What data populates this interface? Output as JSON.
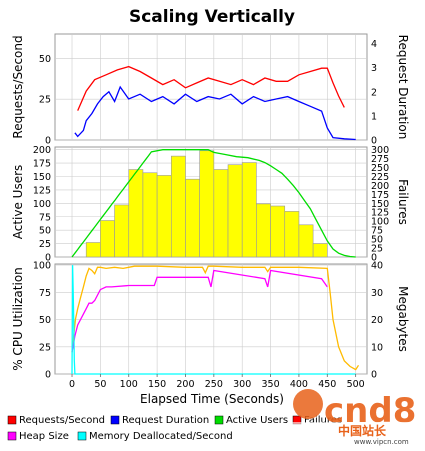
{
  "chart_data": [
    {
      "type": "line",
      "title": "Scaling Vertically",
      "ylabel": "Requests/Second",
      "y2label": "Request Duration",
      "ylim": [
        0,
        65
      ],
      "yticks": [
        0,
        25,
        50
      ],
      "y2lim": [
        0,
        4.4
      ],
      "y2ticks": [
        0,
        1,
        2,
        3,
        4
      ],
      "xlim": [
        -30,
        520
      ],
      "grid": true,
      "series": [
        {
          "name": "Requests/Second",
          "axis": "left",
          "color": "#ff0000",
          "x": [
            10,
            25,
            40,
            60,
            80,
            100,
            120,
            140,
            160,
            180,
            200,
            220,
            240,
            260,
            280,
            300,
            320,
            340,
            360,
            380,
            400,
            420,
            440,
            450,
            460,
            470,
            480
          ],
          "y": [
            18,
            30,
            37,
            40,
            43,
            45,
            42,
            38,
            34,
            37,
            32,
            35,
            38,
            36,
            34,
            37,
            34,
            38,
            36,
            36,
            40,
            42,
            44,
            44,
            35,
            27,
            20
          ]
        },
        {
          "name": "Request Duration",
          "axis": "right",
          "color": "#0000ff",
          "x": [
            5,
            10,
            20,
            25,
            35,
            45,
            55,
            65,
            75,
            85,
            100,
            120,
            140,
            160,
            180,
            200,
            220,
            240,
            260,
            280,
            300,
            320,
            340,
            360,
            380,
            400,
            420,
            440,
            450,
            460,
            480,
            500
          ],
          "y": [
            0.3,
            0.15,
            0.4,
            0.8,
            1.1,
            1.5,
            1.8,
            2.0,
            1.6,
            2.2,
            1.7,
            1.9,
            1.6,
            1.8,
            1.5,
            1.9,
            1.6,
            1.8,
            1.7,
            1.9,
            1.5,
            1.8,
            1.6,
            1.7,
            1.8,
            1.6,
            1.4,
            1.2,
            0.5,
            0.1,
            0.05,
            0.02
          ]
        }
      ]
    },
    {
      "type": "bar",
      "ylabel": "Active Users",
      "y2label": "Failures",
      "ylim": [
        0,
        205
      ],
      "yticks": [
        0,
        25,
        50,
        75,
        100,
        125,
        150,
        175,
        200
      ],
      "y2lim": [
        0,
        307
      ],
      "y2ticks": [
        0,
        25,
        50,
        75,
        100,
        125,
        150,
        175,
        200,
        225,
        250,
        275,
        300
      ],
      "xlim": [
        -30,
        520
      ],
      "grid": true,
      "bar_color": "#ffff00",
      "bars": {
        "x": [
          25,
          50,
          75,
          100,
          125,
          150,
          175,
          200,
          225,
          250,
          275,
          300,
          325,
          350,
          375,
          400,
          425
        ],
        "width": 25,
        "values": [
          27,
          68,
          97,
          163,
          157,
          152,
          188,
          145,
          198,
          163,
          172,
          176,
          99,
          95,
          85,
          60,
          25
        ]
      },
      "series": [
        {
          "name": "Active Users",
          "axis": "left",
          "color": "#00dd00",
          "x": [
            0,
            5,
            10,
            15,
            20,
            25,
            30,
            35,
            40,
            45,
            50,
            55,
            60,
            65,
            70,
            75,
            80,
            85,
            90,
            95,
            100,
            105,
            110,
            115,
            120,
            125,
            130,
            135,
            140,
            160,
            180,
            200,
            220,
            240,
            250,
            270,
            290,
            310,
            330,
            340,
            350,
            360,
            370,
            380,
            390,
            400,
            410,
            420,
            430,
            440,
            450,
            460,
            470,
            480,
            490,
            500
          ],
          "y": [
            0,
            7,
            14,
            21,
            28,
            35,
            42,
            49,
            56,
            63,
            70,
            77,
            84,
            91,
            98,
            105,
            112,
            119,
            126,
            133,
            140,
            147,
            154,
            161,
            168,
            175,
            182,
            189,
            196,
            200,
            200,
            200,
            200,
            200,
            195,
            191,
            187,
            185,
            180,
            176,
            170,
            163,
            156,
            145,
            133,
            120,
            105,
            90,
            70,
            50,
            30,
            15,
            7,
            3,
            1,
            0
          ]
        }
      ]
    },
    {
      "type": "line",
      "ylabel": "% CPU Utilization",
      "y2label": "Megabytes",
      "xlabel": "Elapsed Time (Seconds)",
      "ylim": [
        0,
        101
      ],
      "yticks": [
        0,
        25,
        50,
        75,
        100
      ],
      "y2lim": [
        0,
        40.4
      ],
      "y2ticks": [
        0,
        10,
        20,
        30,
        40
      ],
      "xlim": [
        -30,
        520
      ],
      "xticks": [
        0,
        50,
        100,
        150,
        200,
        250,
        300,
        350,
        400,
        450,
        500
      ],
      "grid": true,
      "series": [
        {
          "name": "% CPU Utilization",
          "axis": "left",
          "color": "#ffbb00",
          "x": [
            0,
            3,
            6,
            10,
            15,
            20,
            25,
            30,
            35,
            40,
            45,
            50,
            60,
            75,
            90,
            100,
            110,
            150,
            200,
            230,
            235,
            240,
            250,
            300,
            340,
            345,
            350,
            400,
            450,
            455,
            460,
            470,
            480,
            490,
            500,
            505
          ],
          "y": [
            20,
            35,
            50,
            60,
            70,
            80,
            90,
            97,
            95,
            92,
            98,
            98,
            97,
            98,
            97,
            98,
            99,
            99,
            98,
            98,
            93,
            99,
            99,
            98,
            98,
            94,
            98,
            98,
            97,
            75,
            50,
            25,
            12,
            7,
            4,
            8
          ]
        },
        {
          "name": "Heap Size",
          "axis": "right",
          "color": "#ff00ff",
          "x": [
            0,
            5,
            10,
            20,
            25,
            30,
            35,
            40,
            50,
            60,
            70,
            100,
            120,
            145,
            150,
            200,
            240,
            245,
            250,
            340,
            345,
            350,
            440,
            450
          ],
          "y": [
            8,
            14,
            18,
            22,
            24,
            26,
            26,
            27,
            31,
            32,
            32,
            32.5,
            32.5,
            32.5,
            35.5,
            35.5,
            35.5,
            32,
            38,
            35,
            32,
            38,
            35,
            32
          ]
        },
        {
          "name": "Memory Deallocated/Second",
          "axis": "right",
          "color": "#00ffff",
          "x": [
            0,
            1,
            2,
            3,
            4,
            5,
            10,
            500
          ],
          "y": [
            0,
            40,
            30,
            20,
            5,
            0,
            0,
            0
          ]
        }
      ]
    }
  ],
  "legend": [
    {
      "name": "Requests/Second",
      "color": "#ff0000"
    },
    {
      "name": "Request Duration",
      "color": "#0000ff"
    },
    {
      "name": "Active Users",
      "color": "#00dd00"
    },
    {
      "name": "Failures",
      "color": "#ff0000"
    },
    {
      "name": "Heap Size",
      "color": "#ff00ff"
    },
    {
      "name": "Memory Deallocated/Second",
      "color": "#00ffff"
    }
  ],
  "watermark": {
    "text": "cnd8",
    "subtext": "www.vipcn.com",
    "badge": "中国站长",
    "color": "#e8621a"
  }
}
